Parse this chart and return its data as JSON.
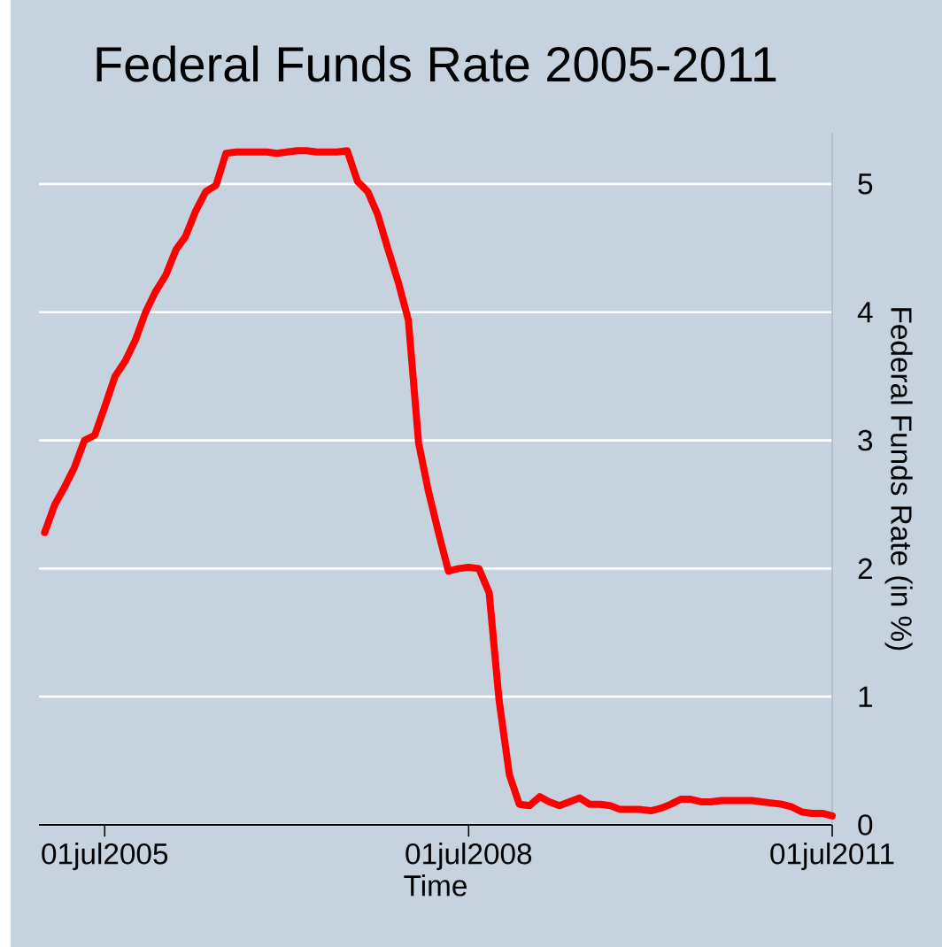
{
  "chart_data": {
    "type": "line",
    "title": "Federal Funds Rate 2005-2011",
    "xlabel": "Time",
    "ylabel": "Federal Funds Rate (in %)",
    "x": [
      "2005-01-01",
      "2005-02-01",
      "2005-03-01",
      "2005-04-01",
      "2005-05-01",
      "2005-06-01",
      "2005-07-01",
      "2005-08-01",
      "2005-09-01",
      "2005-10-01",
      "2005-11-01",
      "2005-12-01",
      "2006-01-01",
      "2006-02-01",
      "2006-03-01",
      "2006-04-01",
      "2006-05-01",
      "2006-06-01",
      "2006-07-01",
      "2006-08-01",
      "2006-09-01",
      "2006-10-01",
      "2006-11-01",
      "2006-12-01",
      "2007-01-01",
      "2007-02-01",
      "2007-03-01",
      "2007-04-01",
      "2007-05-01",
      "2007-06-01",
      "2007-07-01",
      "2007-08-01",
      "2007-09-01",
      "2007-10-01",
      "2007-11-01",
      "2007-12-01",
      "2008-01-01",
      "2008-02-01",
      "2008-03-01",
      "2008-04-01",
      "2008-05-01",
      "2008-06-01",
      "2008-07-01",
      "2008-08-01",
      "2008-09-01",
      "2008-10-01",
      "2008-11-01",
      "2008-12-01",
      "2009-01-01",
      "2009-02-01",
      "2009-03-01",
      "2009-04-01",
      "2009-05-01",
      "2009-06-01",
      "2009-07-01",
      "2009-08-01",
      "2009-09-01",
      "2009-10-01",
      "2009-11-01",
      "2009-12-01",
      "2010-01-01",
      "2010-02-01",
      "2010-03-01",
      "2010-04-01",
      "2010-05-01",
      "2010-06-01",
      "2010-07-01",
      "2010-08-01",
      "2010-09-01",
      "2010-10-01",
      "2010-11-01",
      "2010-12-01",
      "2011-01-01",
      "2011-02-01",
      "2011-03-01",
      "2011-04-01",
      "2011-05-01",
      "2011-06-01",
      "2011-07-01"
    ],
    "series": [
      {
        "color": "#ff0000",
        "values": [
          2.28,
          2.5,
          2.63,
          2.79,
          3.0,
          3.04,
          3.26,
          3.5,
          3.62,
          3.78,
          4.0,
          4.16,
          4.29,
          4.49,
          4.59,
          4.79,
          4.94,
          4.99,
          5.24,
          5.25,
          5.25,
          5.25,
          5.25,
          5.24,
          5.25,
          5.26,
          5.26,
          5.25,
          5.25,
          5.25,
          5.26,
          5.02,
          4.94,
          4.76,
          4.49,
          4.24,
          3.94,
          2.98,
          2.61,
          2.28,
          1.98,
          2.0,
          2.01,
          2.0,
          1.81,
          0.97,
          0.39,
          0.16,
          0.15,
          0.22,
          0.18,
          0.15,
          0.18,
          0.21,
          0.16,
          0.16,
          0.15,
          0.12,
          0.12,
          0.12,
          0.11,
          0.13,
          0.16,
          0.2,
          0.2,
          0.18,
          0.18,
          0.19,
          0.19,
          0.19,
          0.19,
          0.18,
          0.17,
          0.16,
          0.14,
          0.1,
          0.09,
          0.09,
          0.07
        ]
      }
    ],
    "xlim": [
      "2004-12-15",
      "2011-07-01"
    ],
    "xticks": [
      {
        "value": "2005-07-01",
        "label": "01jul2005"
      },
      {
        "value": "2008-07-01",
        "label": "01jul2008"
      },
      {
        "value": "2011-07-01",
        "label": "01jul2011"
      }
    ],
    "ylim": [
      0,
      5.4
    ],
    "yticks": [
      0,
      1,
      2,
      3,
      4,
      5
    ],
    "grid": "y",
    "line_style": "solid"
  }
}
